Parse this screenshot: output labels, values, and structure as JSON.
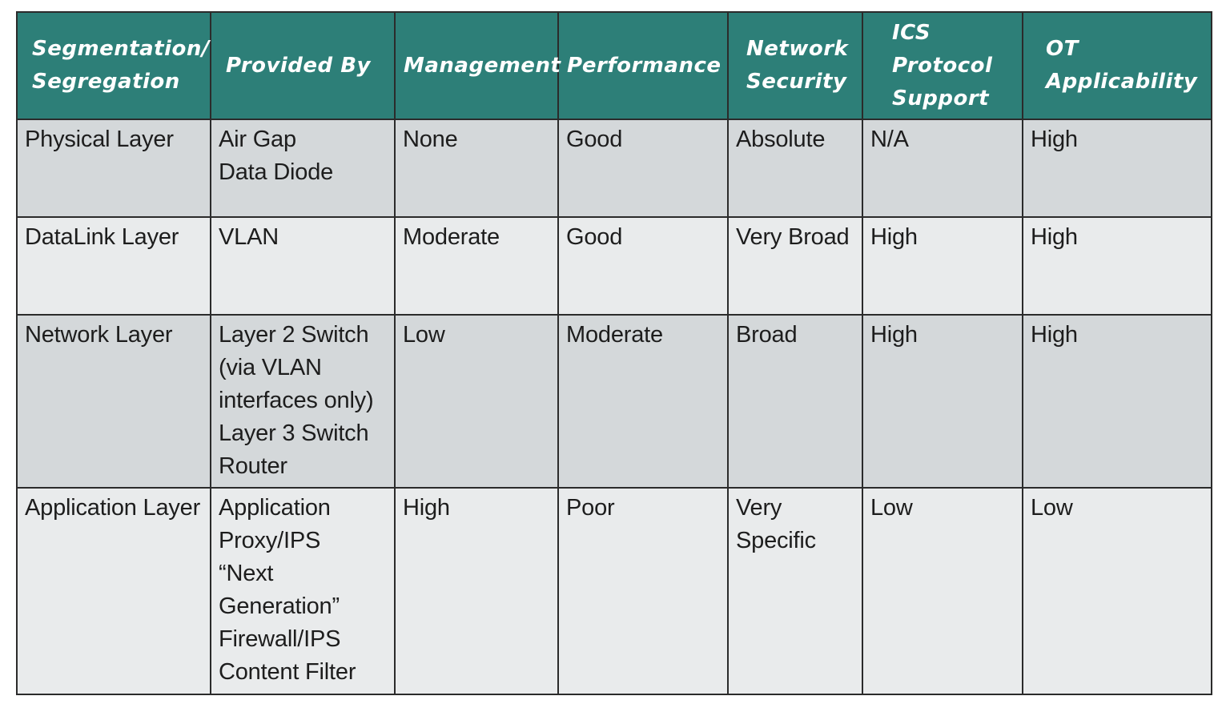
{
  "table": {
    "headers": [
      [
        "Segmentation/",
        "Segregation"
      ],
      [
        "Provided By"
      ],
      [
        "Management"
      ],
      [
        "Performance"
      ],
      [
        "Network",
        "Security"
      ],
      [
        "ICS",
        "Protocol",
        "Support"
      ],
      [
        "OT",
        "Applicability"
      ]
    ],
    "rows": [
      {
        "layer": "Physical Layer",
        "provided_by": [
          "Air Gap",
          "Data Diode"
        ],
        "management": "None",
        "performance": "Good",
        "network_security": [
          "Absolute"
        ],
        "ics_protocol_support": "N/A",
        "ot_applicability": "High"
      },
      {
        "layer": "DataLink Layer",
        "provided_by": [
          "VLAN"
        ],
        "management": "Moderate",
        "performance": "Good",
        "network_security": [
          "Very Broad"
        ],
        "ics_protocol_support": "High",
        "ot_applicability": "High"
      },
      {
        "layer": "Network Layer",
        "provided_by": [
          "Layer 2 Switch",
          "(via VLAN",
          "interfaces only)",
          "Layer 3 Switch",
          "Router"
        ],
        "management": "Low",
        "performance": "Moderate",
        "network_security": [
          "Broad"
        ],
        "ics_protocol_support": "High",
        "ot_applicability": "High"
      },
      {
        "layer": "Application Layer",
        "provided_by": [
          "Application",
          "Proxy/IPS",
          "“Next",
          "Generation”",
          "Firewall/IPS",
          "Content Filter"
        ],
        "management": "High",
        "performance": "Poor",
        "network_security": [
          "Very",
          "Specific"
        ],
        "ics_protocol_support": "Low",
        "ot_applicability": "Low"
      }
    ]
  },
  "colors": {
    "header_bg": "#2d7f78",
    "row_dark": "#d4d8da",
    "row_light": "#e9ebec",
    "border": "#2b2b2b"
  }
}
